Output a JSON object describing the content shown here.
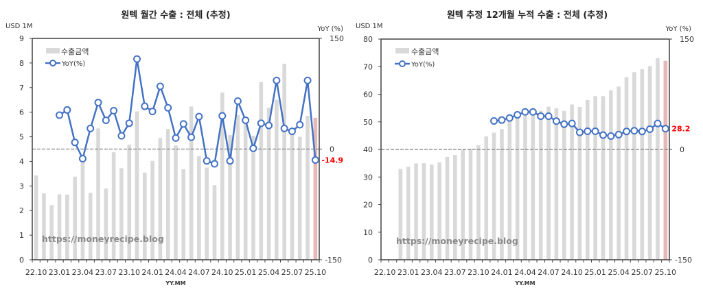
{
  "colors": {
    "bar": "#d9d9d9",
    "bar_last": "#e6b8b7",
    "line": "#4472c4",
    "last_label": "#ff0000",
    "zero_line": "#808080"
  },
  "chart_data": [
    {
      "type": "bar+line",
      "title": "원텍 월간 수출 : 전체 (추정)",
      "ylabel_left": "USD 1M",
      "ylabel_right": "YoY (%)",
      "xlabel": "YY.MM",
      "ylim_left": [
        0,
        9
      ],
      "yticks_left": [
        "0",
        "1",
        "2",
        "3",
        "4",
        "5",
        "6",
        "7",
        "8",
        "9"
      ],
      "ylim_right": [
        -150,
        150
      ],
      "yticks_right": [
        "-150",
        "0",
        "150"
      ],
      "xtick_labels": [
        "22.10",
        "23.01",
        "23.04",
        "23.07",
        "23.10",
        "24.01",
        "24.04",
        "24.07",
        "24.10",
        "25.01",
        "25.04",
        "25.07",
        "25.10"
      ],
      "legend": {
        "bar": "수출금액",
        "line": "YoY(%)",
        "position": "top-left"
      },
      "watermark": "https://moneyrecipe.blog",
      "last_label": "-14.9",
      "categories": [
        "22.10",
        "22.11",
        "22.12",
        "23.01",
        "23.02",
        "23.03",
        "23.04",
        "23.05",
        "23.06",
        "23.07",
        "23.08",
        "23.09",
        "23.10",
        "23.11",
        "23.12",
        "24.01",
        "24.02",
        "24.03",
        "24.04",
        "24.05",
        "24.06",
        "24.07",
        "24.08",
        "24.09",
        "24.10",
        "24.11",
        "24.12",
        "25.01",
        "25.02",
        "25.03",
        "25.04",
        "25.05",
        "25.06",
        "25.07",
        "25.08",
        "25.09",
        "25.10"
      ],
      "series": [
        {
          "name": "수출금액",
          "kind": "bar",
          "axis": "left",
          "values": [
            3.43,
            2.7,
            2.22,
            2.66,
            2.65,
            3.38,
            4.15,
            2.72,
            5.34,
            2.9,
            4.37,
            3.72,
            4.68,
            6.03,
            3.54,
            4.02,
            4.95,
            5.32,
            4.65,
            3.68,
            6.23,
            4.21,
            3.75,
            3.03,
            6.8,
            5.07,
            5.88,
            5.6,
            5.04,
            7.22,
            6.18,
            6.5,
            7.97,
            5.3,
            5.0,
            5.85,
            5.77
          ]
        },
        {
          "name": "YoY(%)",
          "kind": "line",
          "axis": "right",
          "values": [
            null,
            null,
            null,
            46,
            53,
            9,
            -13,
            28,
            63,
            39,
            52,
            18,
            35,
            122,
            58,
            51,
            85,
            56,
            15,
            34,
            16,
            44,
            -16,
            -20,
            45,
            -16,
            65,
            39,
            1,
            35,
            32,
            93,
            28,
            24,
            33,
            93,
            -14.9
          ]
        }
      ]
    },
    {
      "type": "bar+line",
      "title": "원텍 추정 12개월 누적 수출 : 전체 (추정)",
      "ylabel_left": "USD 1M",
      "ylabel_right": "YoY (%)",
      "xlabel": "YY.MM",
      "ylim_left": [
        0,
        80
      ],
      "yticks_left": [
        "0",
        "10",
        "20",
        "30",
        "40",
        "50",
        "60",
        "70",
        "80"
      ],
      "ylim_right": [
        -150,
        150
      ],
      "yticks_right": [
        "-150",
        "0",
        "150"
      ],
      "xtick_labels": [
        "22.10",
        "23.01",
        "23.04",
        "23.07",
        "23.10",
        "24.01",
        "24.04",
        "24.07",
        "24.10",
        "25.01",
        "25.04",
        "25.07",
        "25.10"
      ],
      "legend": {
        "bar": "수출금액",
        "line": "YoY(%)",
        "position": "top-left"
      },
      "watermark": "https://moneyrecipe.blog",
      "last_label": "28.2",
      "categories": [
        "22.10",
        "22.11",
        "22.12",
        "23.01",
        "23.02",
        "23.03",
        "23.04",
        "23.05",
        "23.06",
        "23.07",
        "23.08",
        "23.09",
        "23.10",
        "23.11",
        "23.12",
        "24.01",
        "24.02",
        "24.03",
        "24.04",
        "24.05",
        "24.06",
        "24.07",
        "24.08",
        "24.09",
        "24.10",
        "24.11",
        "24.12",
        "25.01",
        "25.02",
        "25.03",
        "25.04",
        "25.05",
        "25.06",
        "25.07",
        "25.08",
        "25.09",
        "25.10"
      ],
      "series": [
        {
          "name": "수출금액",
          "kind": "bar",
          "axis": "left",
          "values": [
            null,
            null,
            32.9,
            33.7,
            34.9,
            35.0,
            34.5,
            35.3,
            37.3,
            38.0,
            39.9,
            40.2,
            41.5,
            44.7,
            46.1,
            47.4,
            50.2,
            51.5,
            52.3,
            53.1,
            54.0,
            55.5,
            54.9,
            54.0,
            56.3,
            55.4,
            57.9,
            59.3,
            59.3,
            61.4,
            62.8,
            66.2,
            68.0,
            69.1,
            70.2,
            73.1,
            72.1
          ]
        },
        {
          "name": "YoY(%)",
          "kind": "line",
          "axis": "right",
          "values": [
            null,
            null,
            null,
            null,
            null,
            null,
            null,
            null,
            null,
            null,
            null,
            null,
            null,
            null,
            38.7,
            39.9,
            42.7,
            47.0,
            51.0,
            51.0,
            45.2,
            45.2,
            38.4,
            34.3,
            35.3,
            23.2,
            24.7,
            24.7,
            19.5,
            18.2,
            20.1,
            24.4,
            25.4,
            24.4,
            27.5,
            35.3,
            28.2
          ]
        }
      ]
    }
  ]
}
